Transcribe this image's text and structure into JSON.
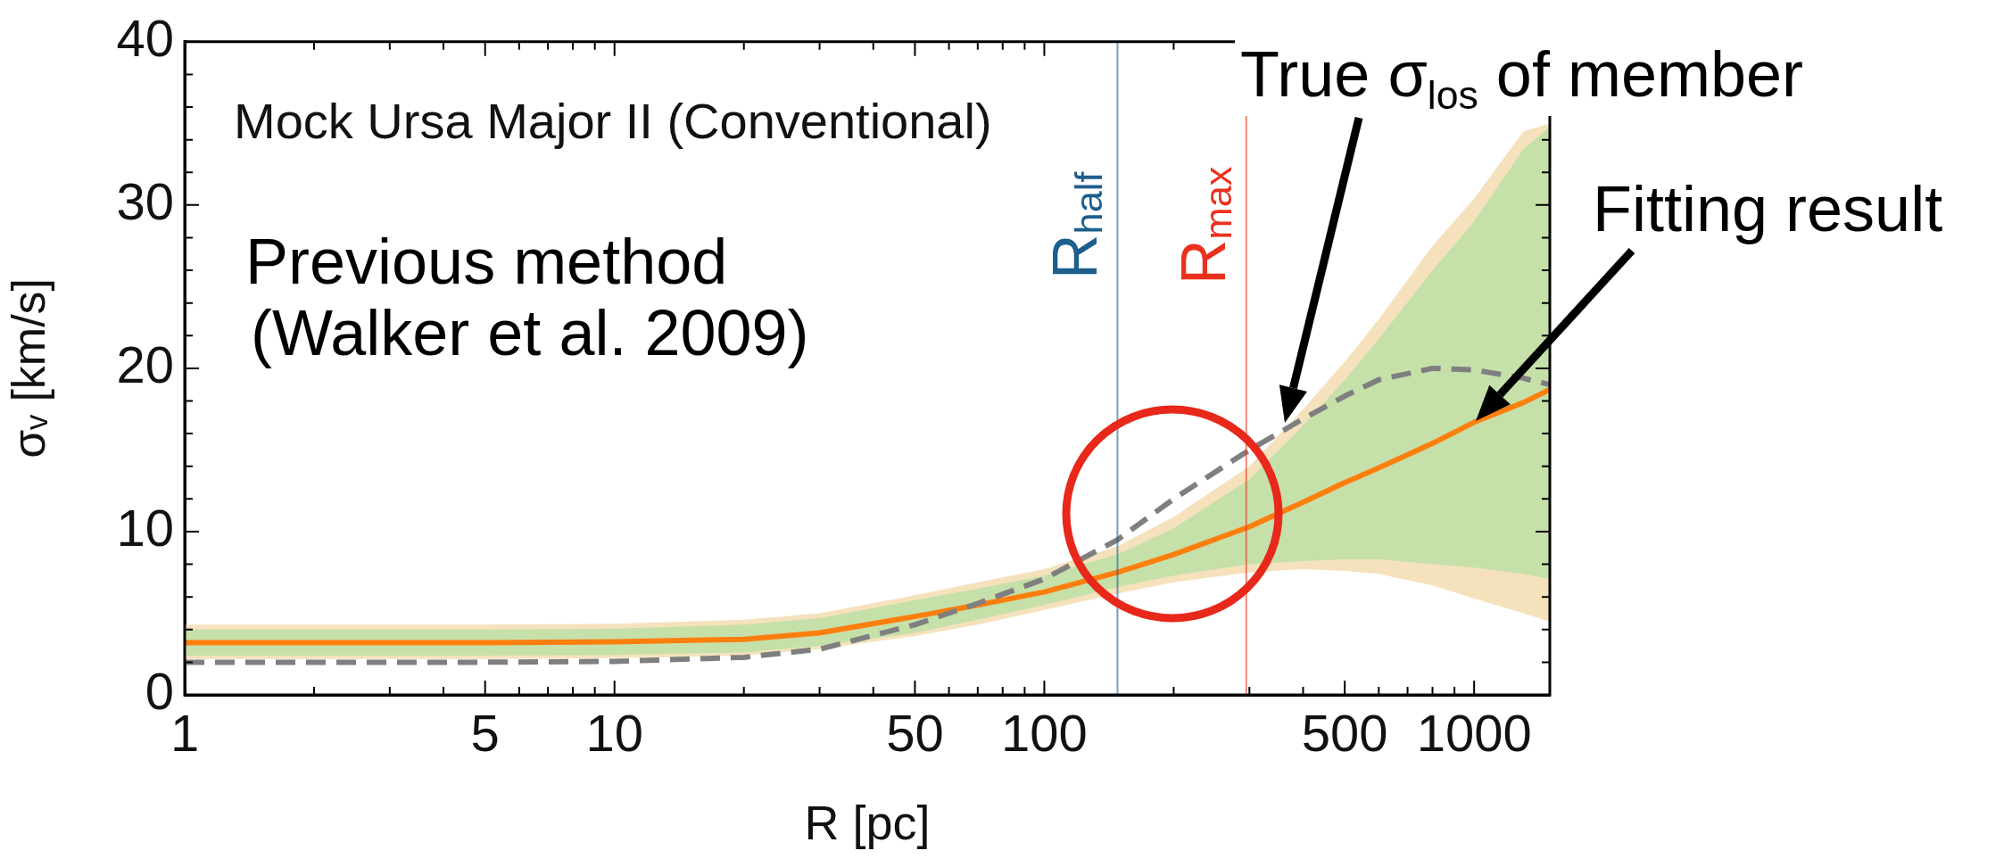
{
  "chart_data": {
    "type": "line",
    "title": "Mock Ursa Major II (Conventional)",
    "xlabel": "R [pc]",
    "ylabel": "σᵥ [km/s]",
    "x": [
      1,
      2,
      5,
      10,
      20,
      30,
      50,
      70,
      100,
      148,
      200,
      300,
      400,
      500,
      600,
      800,
      1000,
      1300,
      1500
    ],
    "series": [
      {
        "color": "#ff7f0e",
        "line_style": "solid",
        "values": [
          3.2,
          3.2,
          3.2,
          3.25,
          3.4,
          3.8,
          4.8,
          5.5,
          6.3,
          7.5,
          8.6,
          10.3,
          11.8,
          13.0,
          13.9,
          15.4,
          16.7,
          17.9,
          18.7
        ],
        "lower": [
          2.2,
          2.2,
          2.2,
          2.25,
          2.4,
          2.8,
          3.6,
          4.3,
          5.2,
          6.2,
          6.9,
          7.5,
          7.7,
          7.6,
          7.4,
          6.7,
          5.9,
          5.0,
          4.5
        ],
        "upper": [
          4.3,
          4.3,
          4.3,
          4.35,
          4.6,
          5.0,
          6.1,
          6.9,
          7.7,
          9.1,
          10.9,
          14.0,
          17.5,
          20.4,
          23,
          27.5,
          30.4,
          34.5,
          35
        ]
      },
      {
        "color": "#ff7f0e",
        "line_style": "solid",
        "values": [
          null,
          null,
          null,
          null,
          null,
          null,
          null,
          null,
          null,
          null,
          null,
          null,
          null,
          null,
          null,
          null,
          null,
          null,
          null
        ],
        "lower": [
          2.4,
          2.4,
          2.4,
          2.45,
          2.6,
          3.0,
          3.8,
          4.6,
          5.5,
          6.6,
          7.3,
          8.0,
          8.2,
          8.3,
          8.3,
          8.0,
          7.8,
          7.4,
          7.1
        ],
        "upper": [
          4.0,
          4.0,
          4.0,
          4.05,
          4.3,
          4.7,
          5.8,
          6.5,
          7.3,
          8.6,
          10.2,
          13.2,
          16.5,
          19.3,
          21.8,
          26,
          29,
          33.4,
          34.8
        ]
      },
      {
        "color": "#7f7f7f",
        "line_style": "dashed",
        "values": [
          2.0,
          2.0,
          2.0,
          2.05,
          2.3,
          2.8,
          4.3,
          5.6,
          7.1,
          9.5,
          12.0,
          15.0,
          16.9,
          18.3,
          19.3,
          20.0,
          19.9,
          19.4,
          19.0
        ]
      }
    ],
    "xlim": [
      1,
      1500
    ],
    "xticks": [
      1,
      {
        "value": 2,
        "label": null
      },
      {
        "value": 3,
        "label": null
      },
      {
        "value": 4,
        "label": null
      },
      5,
      {
        "value": 6,
        "label": null
      },
      {
        "value": 7,
        "label": null
      },
      {
        "value": 8,
        "label": null
      },
      {
        "value": 9,
        "label": null
      },
      10,
      {
        "value": 20,
        "label": null
      },
      {
        "value": 30,
        "label": null
      },
      {
        "value": 40,
        "label": null
      },
      50,
      {
        "value": 60,
        "label": null
      },
      {
        "value": 70,
        "label": null
      },
      {
        "value": 80,
        "label": null
      },
      {
        "value": 90,
        "label": null
      },
      100,
      {
        "value": 200,
        "label": null
      },
      {
        "value": 300,
        "label": null
      },
      {
        "value": 400,
        "label": null
      },
      500,
      {
        "value": 600,
        "label": null
      },
      {
        "value": 700,
        "label": null
      },
      {
        "value": 800,
        "label": null
      },
      {
        "value": 900,
        "label": null
      },
      1000
    ],
    "ylim": [
      0,
      40
    ],
    "yticks": [
      0,
      {
        "value": 2,
        "label": null
      },
      {
        "value": 4,
        "label": null
      },
      {
        "value": 6,
        "label": null
      },
      {
        "value": 8,
        "label": null
      },
      10,
      {
        "value": 12,
        "label": null
      },
      {
        "value": 14,
        "label": null
      },
      {
        "value": 16,
        "label": null
      },
      {
        "value": 18,
        "label": null
      },
      20,
      {
        "value": 22,
        "label": null
      },
      {
        "value": 24,
        "label": null
      },
      {
        "value": 26,
        "label": null
      },
      {
        "value": 28,
        "label": null
      },
      30,
      {
        "value": 32,
        "label": null
      },
      {
        "value": 34,
        "label": null
      },
      {
        "value": 36,
        "label": null
      },
      {
        "value": 38,
        "label": null
      },
      40
    ],
    "log": "x",
    "grid": false,
    "legend": false,
    "marker": "none",
    "ref_lines": [
      {
        "axis": "x",
        "value": 148,
        "label": "R$_{half}$",
        "color": "#1d5e8c"
      },
      {
        "axis": "x",
        "value": 295,
        "label": "R$_{max}$",
        "color": "#e8321e"
      }
    ],
    "annotations": [
      "Previous method\n(Walker et al. 2009)",
      "True σ$_{los}$ of member",
      "Fitting result"
    ]
  }
}
